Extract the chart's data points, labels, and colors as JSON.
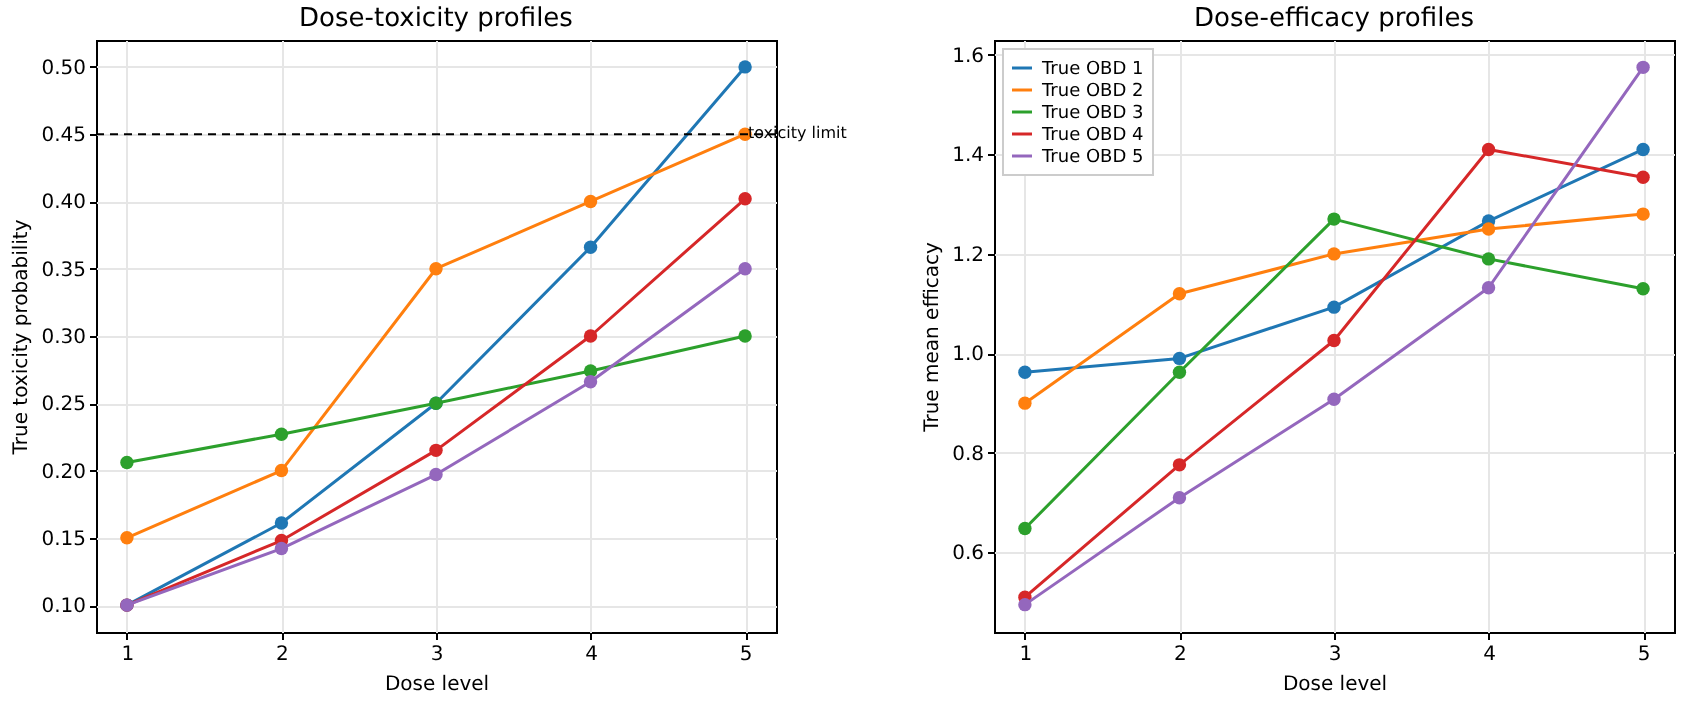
{
  "chart_data": [
    {
      "type": "line",
      "title": "Dose-toxicity profiles",
      "xlabel": "Dose level",
      "ylabel": "True toxicity probability",
      "x": [
        1,
        2,
        3,
        4,
        5
      ],
      "xlim": [
        0.8,
        5.2
      ],
      "xticks": [
        1,
        2,
        3,
        4,
        5
      ],
      "ylim": [
        0.08,
        0.52
      ],
      "yticks": [
        {
          "value": 0.1,
          "label": "0.10"
        },
        0.15,
        {
          "value": 0.2,
          "label": "0.20"
        },
        0.25,
        {
          "value": 0.3,
          "label": "0.30"
        },
        0.35,
        {
          "value": 0.4,
          "label": "0.40"
        },
        0.45,
        {
          "value": 0.5,
          "label": "0.50"
        }
      ],
      "grid": true,
      "marker": "circle",
      "line_style": "solid",
      "ref_lines": [
        {
          "axis": "y",
          "value": 0.45,
          "label": "toxicity limit",
          "color": "#000000",
          "line_style": "dashed"
        }
      ],
      "series": [
        {
          "color": "#1f77b4",
          "values": [
            0.1,
            0.161,
            0.25,
            0.366,
            0.5
          ]
        },
        {
          "color": "#ff7f0e",
          "values": [
            0.15,
            0.2,
            0.35,
            0.4,
            0.45
          ]
        },
        {
          "color": "#2ca02c",
          "values": [
            0.206,
            0.227,
            0.25,
            0.274,
            0.3
          ]
        },
        {
          "color": "#d62728",
          "values": [
            0.1,
            0.148,
            0.215,
            0.3,
            0.402
          ]
        },
        {
          "color": "#9467bd",
          "values": [
            0.1,
            0.142,
            0.197,
            0.266,
            0.35
          ]
        }
      ]
    },
    {
      "type": "line",
      "title": "Dose-efficacy profiles",
      "xlabel": "Dose level",
      "ylabel": "True mean efficacy",
      "x": [
        1,
        2,
        3,
        4,
        5
      ],
      "xlim": [
        0.8,
        5.2
      ],
      "xticks": [
        1,
        2,
        3,
        4,
        5
      ],
      "ylim": [
        0.44,
        1.63
      ],
      "yticks": [
        0.6,
        0.8,
        {
          "value": 1,
          "label": "1.0"
        },
        1.2,
        1.4,
        1.6
      ],
      "grid": true,
      "marker": "circle",
      "line_style": "solid",
      "legend": "top left",
      "series": [
        {
          "name": "True OBD 1",
          "color": "#1f77b4",
          "values": [
            0.962,
            0.99,
            1.093,
            1.266,
            1.41
          ]
        },
        {
          "name": "True OBD 2",
          "color": "#ff7f0e",
          "values": [
            0.9,
            1.12,
            1.2,
            1.25,
            1.28
          ]
        },
        {
          "name": "True OBD 3",
          "color": "#2ca02c",
          "values": [
            0.648,
            0.962,
            1.27,
            1.19,
            1.13
          ]
        },
        {
          "name": "True OBD 4",
          "color": "#d62728",
          "values": [
            0.51,
            0.776,
            1.026,
            1.41,
            1.354
          ]
        },
        {
          "name": "True OBD 5",
          "color": "#9467bd",
          "values": [
            0.495,
            0.71,
            0.908,
            1.132,
            1.575
          ]
        }
      ]
    }
  ]
}
